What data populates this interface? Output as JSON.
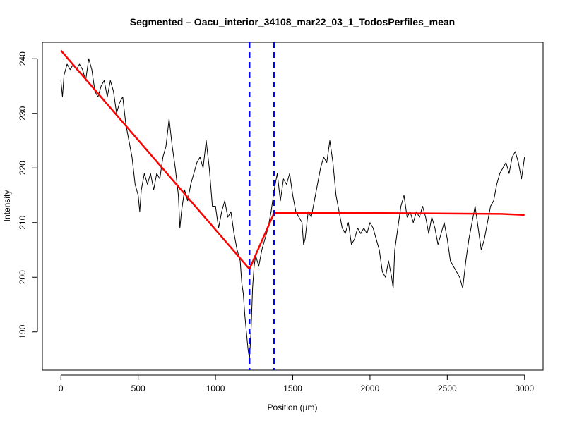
{
  "chart_data": {
    "type": "line",
    "title": "Segmented – Oacu_interior_34108_mar22_03_1_TodosPerfiles_mean",
    "xlabel": "Position (µm)",
    "ylabel": "Intensity",
    "xlim": [
      -120,
      3120
    ],
    "ylim": [
      183,
      243
    ],
    "x_ticks": [
      0,
      500,
      1000,
      1500,
      2000,
      2500,
      3000
    ],
    "y_ticks": [
      190,
      200,
      210,
      220,
      230,
      240
    ],
    "x_tick_labels": [
      "0",
      "500",
      "1000",
      "1500",
      "2000",
      "2500",
      "3000"
    ],
    "y_tick_labels": [
      "190",
      "200",
      "210",
      "220",
      "230",
      "240"
    ],
    "grid": false,
    "series": [
      {
        "role": "observed",
        "color": "#000000",
        "points": [
          [
            0,
            236
          ],
          [
            10,
            233
          ],
          [
            20,
            237
          ],
          [
            30,
            238
          ],
          [
            40,
            239
          ],
          [
            60,
            238
          ],
          [
            80,
            239
          ],
          [
            100,
            238
          ],
          [
            120,
            239
          ],
          [
            140,
            238
          ],
          [
            160,
            236
          ],
          [
            180,
            240
          ],
          [
            200,
            238
          ],
          [
            220,
            234
          ],
          [
            240,
            233
          ],
          [
            260,
            235
          ],
          [
            280,
            236
          ],
          [
            300,
            233
          ],
          [
            320,
            236
          ],
          [
            340,
            234
          ],
          [
            360,
            230
          ],
          [
            380,
            232
          ],
          [
            400,
            233
          ],
          [
            420,
            228
          ],
          [
            440,
            225
          ],
          [
            460,
            222
          ],
          [
            480,
            217
          ],
          [
            500,
            215
          ],
          [
            510,
            212
          ],
          [
            520,
            216
          ],
          [
            540,
            219
          ],
          [
            560,
            217
          ],
          [
            580,
            219
          ],
          [
            600,
            216
          ],
          [
            620,
            219
          ],
          [
            640,
            218
          ],
          [
            660,
            222
          ],
          [
            680,
            224
          ],
          [
            700,
            229
          ],
          [
            720,
            224
          ],
          [
            740,
            220
          ],
          [
            760,
            215
          ],
          [
            770,
            209
          ],
          [
            780,
            212
          ],
          [
            800,
            216
          ],
          [
            820,
            214
          ],
          [
            840,
            217
          ],
          [
            860,
            219
          ],
          [
            880,
            221
          ],
          [
            900,
            222
          ],
          [
            920,
            220
          ],
          [
            940,
            225
          ],
          [
            960,
            220
          ],
          [
            980,
            213
          ],
          [
            1000,
            213
          ],
          [
            1020,
            209
          ],
          [
            1040,
            212
          ],
          [
            1060,
            214
          ],
          [
            1080,
            211
          ],
          [
            1100,
            212
          ],
          [
            1120,
            208
          ],
          [
            1140,
            205
          ],
          [
            1160,
            203
          ],
          [
            1170,
            199
          ],
          [
            1180,
            197
          ],
          [
            1190,
            193
          ],
          [
            1200,
            190
          ],
          [
            1210,
            187
          ],
          [
            1220,
            185
          ],
          [
            1230,
            190
          ],
          [
            1240,
            198
          ],
          [
            1250,
            202
          ],
          [
            1260,
            204
          ],
          [
            1280,
            202
          ],
          [
            1300,
            205
          ],
          [
            1320,
            207
          ],
          [
            1340,
            209
          ],
          [
            1360,
            212
          ],
          [
            1380,
            216
          ],
          [
            1400,
            219
          ],
          [
            1420,
            214
          ],
          [
            1440,
            218
          ],
          [
            1460,
            217
          ],
          [
            1480,
            219
          ],
          [
            1500,
            215
          ],
          [
            1520,
            212
          ],
          [
            1540,
            211
          ],
          [
            1560,
            210
          ],
          [
            1570,
            206
          ],
          [
            1580,
            207
          ],
          [
            1600,
            212
          ],
          [
            1620,
            211
          ],
          [
            1640,
            214
          ],
          [
            1660,
            217
          ],
          [
            1680,
            220
          ],
          [
            1700,
            222
          ],
          [
            1720,
            221
          ],
          [
            1740,
            225
          ],
          [
            1760,
            221
          ],
          [
            1780,
            215
          ],
          [
            1800,
            212
          ],
          [
            1820,
            209
          ],
          [
            1840,
            208
          ],
          [
            1860,
            210
          ],
          [
            1880,
            206
          ],
          [
            1900,
            207
          ],
          [
            1920,
            209
          ],
          [
            1940,
            208
          ],
          [
            1960,
            209
          ],
          [
            1980,
            208
          ],
          [
            2000,
            210
          ],
          [
            2020,
            209
          ],
          [
            2040,
            207
          ],
          [
            2060,
            205
          ],
          [
            2080,
            201
          ],
          [
            2100,
            200
          ],
          [
            2120,
            203
          ],
          [
            2140,
            200
          ],
          [
            2150,
            198
          ],
          [
            2160,
            205
          ],
          [
            2180,
            209
          ],
          [
            2200,
            213
          ],
          [
            2220,
            215
          ],
          [
            2240,
            211
          ],
          [
            2260,
            212
          ],
          [
            2280,
            210
          ],
          [
            2300,
            212
          ],
          [
            2320,
            211
          ],
          [
            2340,
            213
          ],
          [
            2360,
            211
          ],
          [
            2380,
            208
          ],
          [
            2400,
            211
          ],
          [
            2420,
            209
          ],
          [
            2440,
            206
          ],
          [
            2460,
            208
          ],
          [
            2480,
            210
          ],
          [
            2500,
            207
          ],
          [
            2520,
            203
          ],
          [
            2540,
            202
          ],
          [
            2560,
            201
          ],
          [
            2580,
            200
          ],
          [
            2600,
            198
          ],
          [
            2620,
            203
          ],
          [
            2640,
            207
          ],
          [
            2660,
            210
          ],
          [
            2680,
            213
          ],
          [
            2700,
            209
          ],
          [
            2720,
            205
          ],
          [
            2740,
            207
          ],
          [
            2760,
            210
          ],
          [
            2780,
            213
          ],
          [
            2800,
            214
          ],
          [
            2820,
            217
          ],
          [
            2840,
            219
          ],
          [
            2860,
            220
          ],
          [
            2880,
            221
          ],
          [
            2900,
            219
          ],
          [
            2920,
            222
          ],
          [
            2940,
            223
          ],
          [
            2960,
            221
          ],
          [
            2980,
            218
          ],
          [
            3000,
            222
          ]
        ]
      },
      {
        "role": "segmented fit",
        "color": "#ff0000",
        "points": [
          [
            0,
            241.5
          ],
          [
            1220,
            201.5
          ],
          [
            1380,
            211.8
          ],
          [
            1800,
            211.8
          ],
          [
            2850,
            211.6
          ],
          [
            3000,
            211.4
          ]
        ]
      }
    ],
    "breakpoints": [
      {
        "x": 1220,
        "color": "#0000ff",
        "style": "dashed"
      },
      {
        "x": 1380,
        "color": "#0000ff",
        "style": "dashed"
      }
    ]
  }
}
